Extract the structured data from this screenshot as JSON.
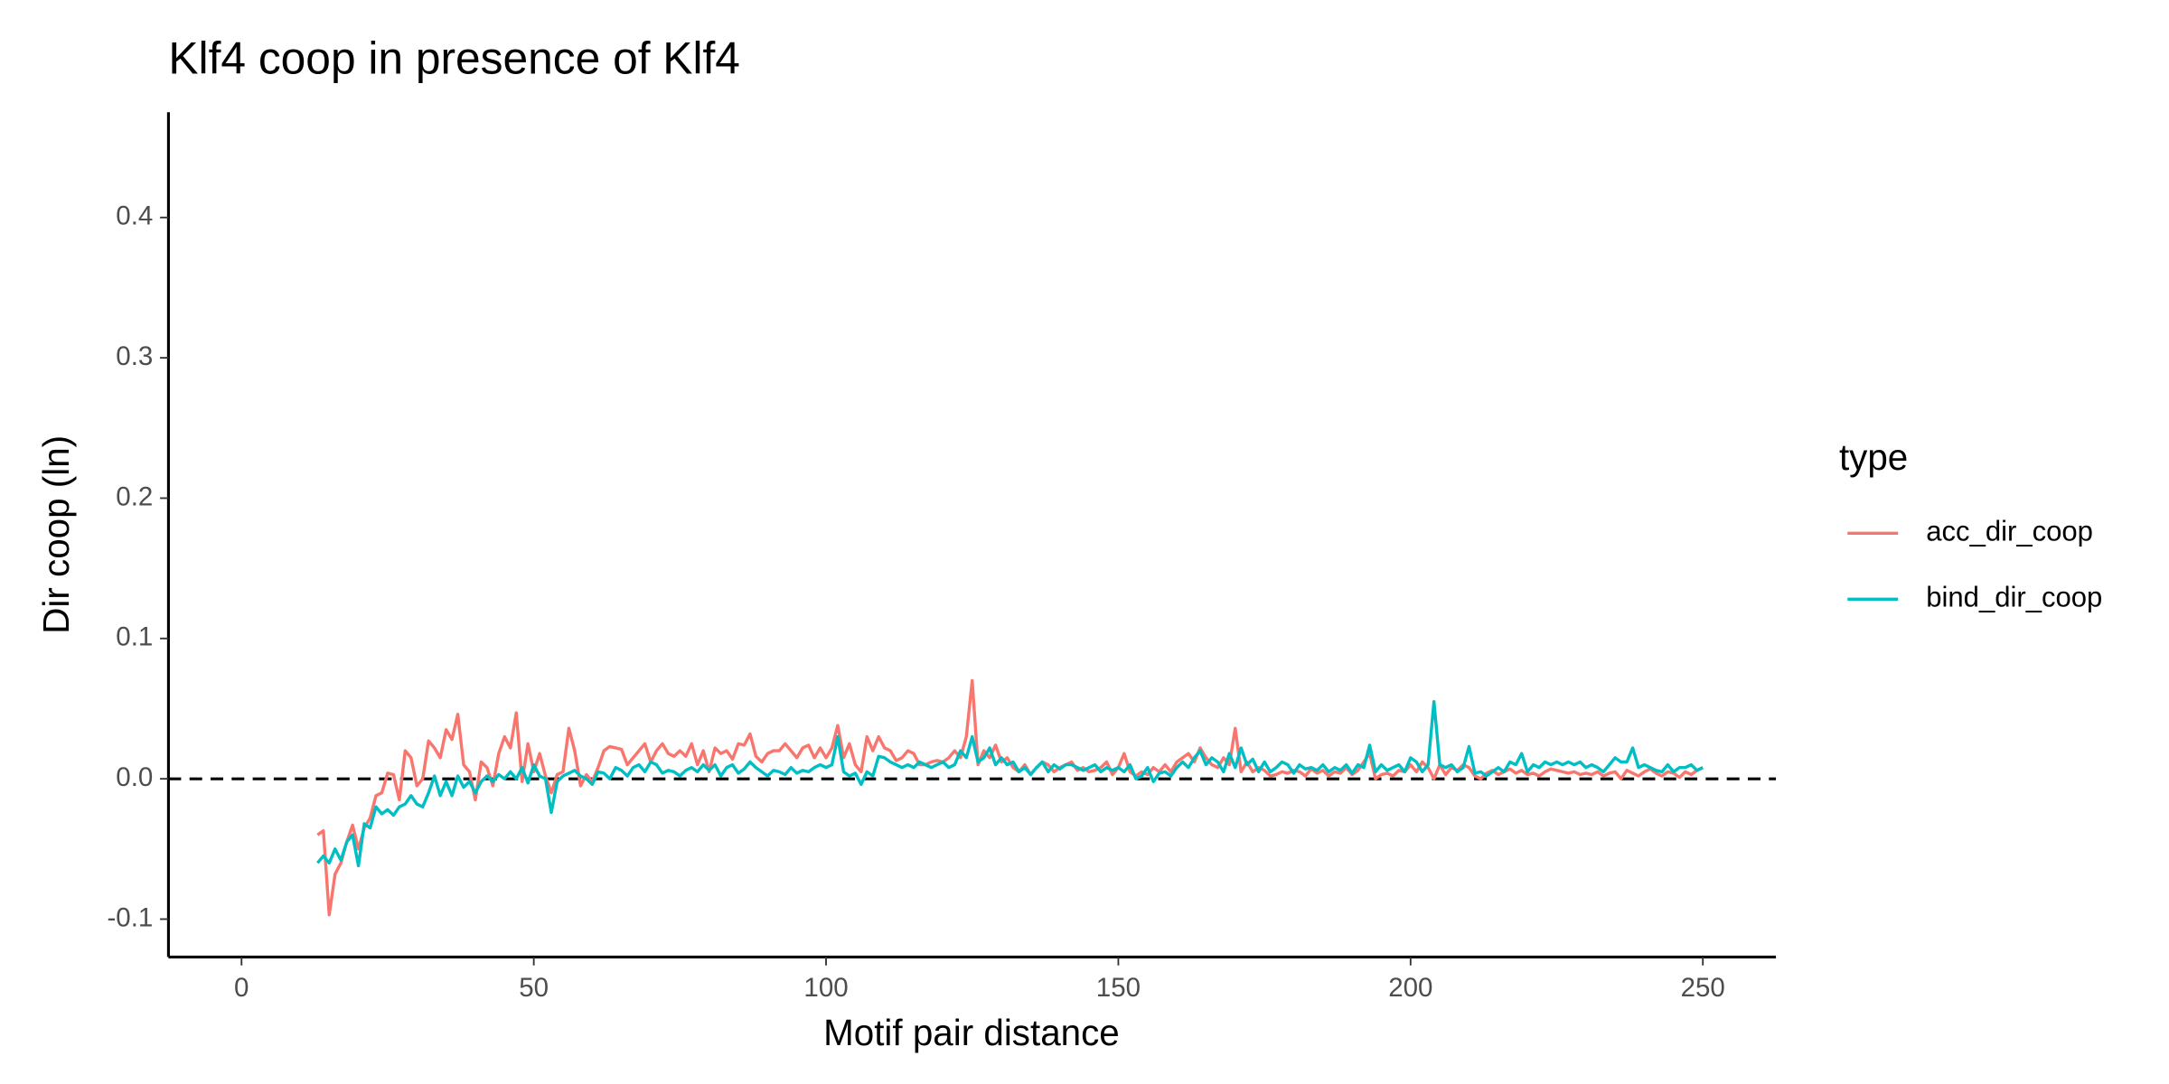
{
  "chart_data": {
    "type": "line",
    "title": "Klf4 coop in presence of Klf4",
    "x_label": "Motif pair distance",
    "y_label": "Dir coop (ln)",
    "legend_title": "type",
    "legend_position": "right",
    "hline": 0,
    "xlim": [
      -12.5,
      262.5
    ],
    "ylim": [
      -0.127,
      0.475
    ],
    "xticks": [
      0,
      50,
      100,
      150,
      200,
      250
    ],
    "yticks": [
      -0.1,
      {
        "value": 0,
        "label": "0.0"
      },
      0.1,
      0.2,
      0.3,
      0.4
    ],
    "x": [
      13,
      14,
      15,
      16,
      17,
      18,
      19,
      20,
      21,
      22,
      23,
      24,
      25,
      26,
      27,
      28,
      29,
      30,
      31,
      32,
      33,
      34,
      35,
      36,
      37,
      38,
      39,
      40,
      41,
      42,
      43,
      44,
      45,
      46,
      47,
      48,
      49,
      50,
      51,
      52,
      53,
      54,
      55,
      56,
      57,
      58,
      59,
      60,
      61,
      62,
      63,
      64,
      65,
      66,
      67,
      68,
      69,
      70,
      71,
      72,
      73,
      74,
      75,
      76,
      77,
      78,
      79,
      80,
      81,
      82,
      83,
      84,
      85,
      86,
      87,
      88,
      89,
      90,
      91,
      92,
      93,
      94,
      95,
      96,
      97,
      98,
      99,
      100,
      101,
      102,
      103,
      104,
      105,
      106,
      107,
      108,
      109,
      110,
      111,
      112,
      113,
      114,
      115,
      116,
      117,
      118,
      119,
      120,
      121,
      122,
      123,
      124,
      125,
      126,
      127,
      128,
      129,
      130,
      131,
      132,
      133,
      134,
      135,
      136,
      137,
      138,
      139,
      140,
      141,
      142,
      143,
      144,
      145,
      146,
      147,
      148,
      149,
      150,
      151,
      152,
      153,
      154,
      155,
      156,
      157,
      158,
      159,
      160,
      161,
      162,
      163,
      164,
      165,
      166,
      167,
      168,
      169,
      170,
      171,
      172,
      173,
      174,
      175,
      176,
      177,
      178,
      179,
      180,
      181,
      182,
      183,
      184,
      185,
      186,
      187,
      188,
      189,
      190,
      191,
      192,
      193,
      194,
      195,
      196,
      197,
      198,
      199,
      200,
      201,
      202,
      203,
      204,
      205,
      206,
      207,
      208,
      209,
      210,
      211,
      212,
      213,
      214,
      215,
      216,
      217,
      218,
      219,
      220,
      221,
      222,
      223,
      224,
      225,
      226,
      227,
      228,
      229,
      230,
      231,
      232,
      233,
      234,
      235,
      236,
      237,
      238,
      239,
      240,
      241,
      242,
      243,
      244,
      245,
      246,
      247,
      248,
      249,
      250
    ],
    "series": [
      {
        "name": "acc_dir_coop",
        "color": "#f8766d",
        "values": [
          -0.04,
          -0.037,
          -0.097,
          -0.068,
          -0.06,
          -0.045,
          -0.033,
          -0.05,
          -0.035,
          -0.028,
          -0.012,
          -0.01,
          0.004,
          0.003,
          -0.015,
          0.02,
          0.015,
          -0.005,
          0.0,
          0.027,
          0.022,
          0.015,
          0.035,
          0.028,
          0.046,
          0.01,
          0.005,
          -0.015,
          0.012,
          0.008,
          -0.005,
          0.018,
          0.03,
          0.022,
          0.047,
          -0.002,
          0.025,
          0.005,
          0.018,
          0.002,
          -0.01,
          0.003,
          0.005,
          0.036,
          0.02,
          -0.005,
          0.003,
          -0.002,
          0.008,
          0.02,
          0.023,
          0.022,
          0.021,
          0.01,
          0.015,
          0.02,
          0.025,
          0.012,
          0.02,
          0.025,
          0.018,
          0.016,
          0.02,
          0.016,
          0.025,
          0.01,
          0.02,
          0.005,
          0.022,
          0.018,
          0.02,
          0.014,
          0.025,
          0.024,
          0.032,
          0.016,
          0.012,
          0.018,
          0.02,
          0.02,
          0.025,
          0.02,
          0.015,
          0.022,
          0.024,
          0.015,
          0.022,
          0.015,
          0.022,
          0.038,
          0.015,
          0.025,
          0.01,
          0.005,
          0.03,
          0.02,
          0.03,
          0.022,
          0.02,
          0.013,
          0.015,
          0.02,
          0.018,
          0.01,
          0.01,
          0.012,
          0.013,
          0.012,
          0.015,
          0.02,
          0.015,
          0.03,
          0.07,
          0.01,
          0.02,
          0.015,
          0.024,
          0.012,
          0.015,
          0.008,
          0.005,
          0.01,
          0.003,
          0.008,
          0.012,
          0.01,
          0.005,
          0.008,
          0.01,
          0.012,
          0.006,
          0.008,
          0.005,
          0.006,
          0.008,
          0.012,
          0.003,
          0.008,
          0.018,
          0.005,
          0.002,
          0.005,
          0.003,
          0.008,
          0.005,
          0.01,
          0.005,
          0.012,
          0.015,
          0.018,
          0.012,
          0.022,
          0.015,
          0.01,
          0.008,
          0.015,
          0.01,
          0.036,
          0.005,
          0.012,
          0.005,
          0.008,
          0.006,
          0.002,
          0.003,
          0.005,
          0.004,
          0.006,
          0.005,
          0.002,
          0.007,
          0.004,
          0.006,
          0.002,
          0.005,
          0.004,
          0.008,
          0.003,
          0.006,
          0.012,
          0.018,
          0.0,
          0.003,
          0.004,
          0.002,
          0.006,
          0.005,
          0.01,
          0.005,
          0.012,
          0.008,
          0.0,
          0.01,
          0.003,
          0.008,
          0.006,
          0.01,
          0.008,
          0.002,
          0.0,
          0.004,
          0.006,
          0.003,
          0.005,
          0.007,
          0.004,
          0.006,
          0.003,
          0.004,
          0.002,
          0.005,
          0.007,
          0.006,
          0.005,
          0.004,
          0.005,
          0.003,
          0.004,
          0.003,
          0.005,
          0.002,
          0.004,
          0.005,
          0.0,
          0.006,
          0.004,
          0.002,
          0.005,
          0.007,
          0.004,
          0.002,
          0.005,
          0.004,
          0.001,
          0.005,
          0.003,
          0.006,
          0.008
        ]
      },
      {
        "name": "bind_dir_coop",
        "color": "#00bfc4",
        "values": [
          -0.06,
          -0.055,
          -0.06,
          -0.05,
          -0.058,
          -0.045,
          -0.04,
          -0.062,
          -0.032,
          -0.035,
          -0.02,
          -0.025,
          -0.022,
          -0.026,
          -0.02,
          -0.018,
          -0.012,
          -0.018,
          -0.02,
          -0.01,
          0.002,
          -0.012,
          -0.002,
          -0.012,
          0.002,
          -0.006,
          -0.002,
          -0.01,
          -0.002,
          0.002,
          -0.002,
          0.003,
          0.0,
          0.005,
          0.0,
          0.008,
          -0.003,
          0.01,
          0.002,
          0.0,
          -0.024,
          -0.002,
          0.002,
          0.004,
          0.006,
          0.002,
          0.0,
          -0.004,
          0.005,
          0.004,
          0.0,
          0.008,
          0.006,
          0.002,
          0.008,
          0.01,
          0.005,
          0.012,
          0.01,
          0.004,
          0.006,
          0.005,
          0.002,
          0.006,
          0.008,
          0.005,
          0.01,
          0.006,
          0.01,
          0.002,
          0.008,
          0.01,
          0.004,
          0.007,
          0.012,
          0.008,
          0.005,
          0.002,
          0.006,
          0.005,
          0.003,
          0.008,
          0.004,
          0.006,
          0.005,
          0.008,
          0.01,
          0.008,
          0.01,
          0.03,
          0.005,
          0.002,
          0.004,
          -0.004,
          0.005,
          0.002,
          0.016,
          0.015,
          0.012,
          0.01,
          0.008,
          0.01,
          0.008,
          0.012,
          0.01,
          0.008,
          0.01,
          0.012,
          0.008,
          0.01,
          0.02,
          0.015,
          0.03,
          0.012,
          0.015,
          0.022,
          0.01,
          0.015,
          0.01,
          0.012,
          0.005,
          0.008,
          0.003,
          0.008,
          0.012,
          0.005,
          0.01,
          0.007,
          0.01,
          0.01,
          0.008,
          0.006,
          0.008,
          0.01,
          0.005,
          0.008,
          0.006,
          0.008,
          0.005,
          0.01,
          0.0,
          0.002,
          0.008,
          -0.002,
          0.004,
          0.005,
          0.002,
          0.008,
          0.012,
          0.008,
          0.015,
          0.02,
          0.01,
          0.015,
          0.012,
          0.005,
          0.018,
          0.008,
          0.022,
          0.01,
          0.014,
          0.005,
          0.012,
          0.005,
          0.008,
          0.012,
          0.01,
          0.004,
          0.01,
          0.007,
          0.008,
          0.006,
          0.01,
          0.005,
          0.008,
          0.006,
          0.01,
          0.004,
          0.01,
          0.008,
          0.024,
          0.005,
          0.01,
          0.006,
          0.008,
          0.01,
          0.005,
          0.015,
          0.012,
          0.005,
          0.01,
          0.055,
          0.01,
          0.008,
          0.01,
          0.005,
          0.008,
          0.023,
          0.004,
          0.005,
          0.002,
          0.005,
          0.008,
          0.005,
          0.012,
          0.01,
          0.018,
          0.005,
          0.01,
          0.008,
          0.012,
          0.01,
          0.012,
          0.01,
          0.012,
          0.01,
          0.012,
          0.008,
          0.01,
          0.008,
          0.005,
          0.01,
          0.015,
          0.012,
          0.012,
          0.022,
          0.008,
          0.01,
          0.008,
          0.006,
          0.005,
          0.01,
          0.005,
          0.008,
          0.008,
          0.01,
          0.006,
          0.008
        ]
      }
    ]
  }
}
